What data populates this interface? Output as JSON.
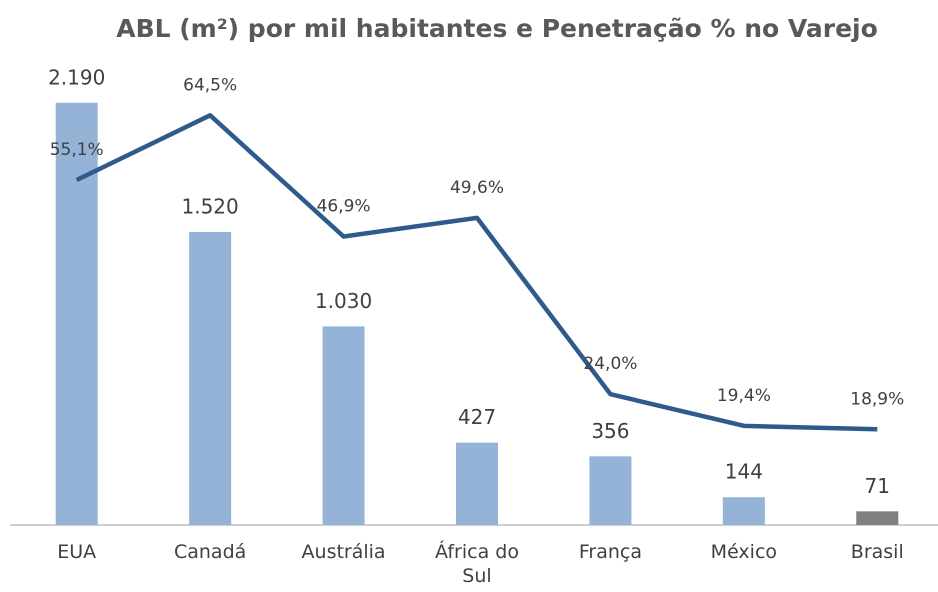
{
  "chart_data": {
    "type": "bar",
    "title": "ABL (m²) por mil habitantes e Penetração % no Varejo",
    "categories": [
      "EUA",
      "Canadá",
      "Austrália",
      "África do Sul",
      "França",
      "México",
      "Brasil"
    ],
    "series": [
      {
        "type": "bar",
        "values": [
          2190,
          1520,
          1030,
          427,
          356,
          144,
          71
        ],
        "value_labels": [
          "2.190",
          "1.520",
          "1.030",
          "427",
          "356",
          "144",
          "71"
        ],
        "colors": [
          "#95b3d7",
          "#95b3d7",
          "#95b3d7",
          "#95b3d7",
          "#95b3d7",
          "#95b3d7",
          "#808080"
        ]
      },
      {
        "type": "line",
        "axis": "y2",
        "values": [
          55.1,
          64.5,
          46.9,
          49.6,
          24.0,
          19.4,
          18.9
        ],
        "value_labels": [
          "55,1%",
          "64,5%",
          "46,9%",
          "49,6%",
          "24,0%",
          "19,4%",
          "18,9%"
        ],
        "color": "#2f5a8c"
      }
    ],
    "ylim": [
      0,
      2500
    ],
    "y2lim": [
      5,
      75
    ]
  }
}
